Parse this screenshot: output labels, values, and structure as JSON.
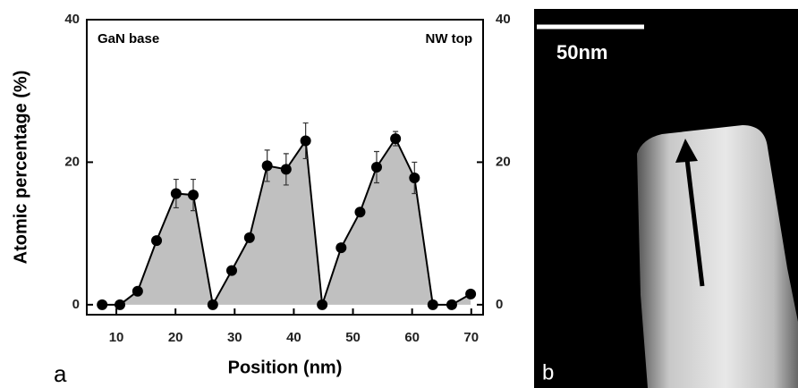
{
  "chart_data": {
    "type": "line",
    "xlabel": "Position (nm)",
    "ylabel": "Atomic percentage (%)",
    "annotations": [
      "GaN base",
      "NW top"
    ],
    "panel_label": "a",
    "x": [
      7.6,
      10.6,
      13.6,
      16.8,
      20.1,
      23.0,
      26.3,
      29.5,
      32.5,
      35.5,
      38.7,
      42.0,
      44.8,
      48.0,
      51.2,
      54.0,
      57.2,
      60.4,
      63.5,
      66.7,
      69.9
    ],
    "values": [
      0,
      0,
      1.9,
      9.0,
      15.6,
      15.4,
      0,
      4.8,
      9.4,
      19.5,
      19.0,
      23.0,
      0,
      8.0,
      13.0,
      19.3,
      23.3,
      17.8,
      0,
      0,
      1.5
    ],
    "errors": [
      null,
      null,
      null,
      null,
      2.0,
      2.2,
      null,
      null,
      null,
      2.2,
      2.2,
      2.5,
      null,
      null,
      null,
      2.2,
      1.0,
      2.2,
      null,
      null,
      null
    ],
    "color": "#000000",
    "fill": "#c0c0c0",
    "xlim": [
      5,
      72
    ],
    "xticks": [
      10,
      20,
      30,
      40,
      50,
      60,
      70
    ],
    "ylim": [
      -1.4,
      40
    ],
    "yticks": [
      0,
      20,
      40
    ],
    "y2lim": [
      -1.4,
      40
    ],
    "y2ticks": [
      0,
      20,
      40
    ]
  },
  "image_panel": {
    "scale_label": "50nm",
    "panel_label": "b"
  }
}
